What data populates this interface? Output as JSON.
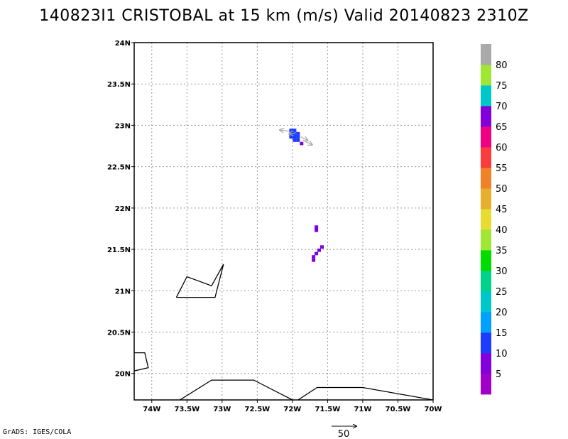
{
  "title": "140823I1 CRISTOBAL at 15 km (m/s) Valid 20140823 2310Z",
  "credit": "GrADS: IGES/COLA",
  "chart_data": {
    "type": "map",
    "xlim": [
      -74.25,
      -70.0
    ],
    "ylim": [
      19.68,
      24.0
    ],
    "grid": true,
    "x_ticks": [
      {
        "value": -74.0,
        "label": "74W"
      },
      {
        "value": -73.5,
        "label": "73.5W"
      },
      {
        "value": -73.0,
        "label": "73W"
      },
      {
        "value": -72.5,
        "label": "72.5W"
      },
      {
        "value": -72.0,
        "label": "72W"
      },
      {
        "value": -71.5,
        "label": "71.5W"
      },
      {
        "value": -71.0,
        "label": "71W"
      },
      {
        "value": -70.5,
        "label": "70.5W"
      },
      {
        "value": -70.0,
        "label": "70W"
      }
    ],
    "y_ticks": [
      {
        "value": 20.0,
        "label": "20N"
      },
      {
        "value": 20.5,
        "label": "20.5N"
      },
      {
        "value": 21.0,
        "label": "21N"
      },
      {
        "value": 21.5,
        "label": "21.5N"
      },
      {
        "value": 22.0,
        "label": "22N"
      },
      {
        "value": 22.5,
        "label": "22.5N"
      },
      {
        "value": 23.0,
        "label": "23N"
      },
      {
        "value": 23.5,
        "label": "23.5N"
      },
      {
        "value": 24.0,
        "label": "24N"
      }
    ],
    "colorbar": {
      "colors": [
        "#a000c8",
        "#8200dc",
        "#1e3cff",
        "#00a0ff",
        "#00c8c8",
        "#00d28c",
        "#00dc00",
        "#a0e632",
        "#e6dc32",
        "#e6af2d",
        "#f08228",
        "#fa3c3c",
        "#f00082",
        "#8200dc",
        "#00c8c8",
        "#a0e632",
        "#aaaaaa"
      ],
      "labels": [
        "5",
        "10",
        "15",
        "20",
        "25",
        "30",
        "35",
        "40",
        "45",
        "50",
        "55",
        "60",
        "65",
        "70",
        "75",
        "80"
      ]
    },
    "wind_cells": [
      {
        "lon": -72.02,
        "lat": 22.94,
        "speed": 10
      },
      {
        "lon": -71.97,
        "lat": 22.94,
        "speed": 10
      },
      {
        "lon": -72.02,
        "lat": 22.9,
        "speed": 10
      },
      {
        "lon": -71.97,
        "lat": 22.9,
        "speed": 10
      },
      {
        "lon": -71.92,
        "lat": 22.9,
        "speed": 10
      },
      {
        "lon": -72.02,
        "lat": 22.86,
        "speed": 10
      },
      {
        "lon": -71.97,
        "lat": 22.86,
        "speed": 10
      },
      {
        "lon": -71.92,
        "lat": 22.86,
        "speed": 10
      },
      {
        "lon": -71.97,
        "lat": 22.82,
        "speed": 10
      },
      {
        "lon": -71.92,
        "lat": 22.82,
        "speed": 10
      },
      {
        "lon": -71.87,
        "lat": 22.78,
        "speed": 5
      },
      {
        "lon": -71.66,
        "lat": 21.77,
        "speed": 5
      },
      {
        "lon": -71.66,
        "lat": 21.73,
        "speed": 5
      },
      {
        "lon": -71.58,
        "lat": 21.53,
        "speed": 5
      },
      {
        "lon": -71.62,
        "lat": 21.49,
        "speed": 5
      },
      {
        "lon": -71.66,
        "lat": 21.45,
        "speed": 5
      },
      {
        "lon": -71.7,
        "lat": 21.41,
        "speed": 5
      },
      {
        "lon": -71.7,
        "lat": 21.37,
        "speed": 5
      }
    ],
    "wind_vectors": [
      {
        "lon": -72.05,
        "lat": 22.93,
        "u": -8,
        "v": 1
      },
      {
        "lon": -71.95,
        "lat": 22.91,
        "u": -6,
        "v": -1
      },
      {
        "lon": -71.88,
        "lat": 22.86,
        "u": 6,
        "v": -3
      },
      {
        "lon": -71.85,
        "lat": 22.82,
        "u": 8,
        "v": -4
      }
    ],
    "coastlines": [
      [
        [
          -73.65,
          20.92
        ],
        [
          -73.5,
          21.17
        ],
        [
          -73.15,
          21.06
        ],
        [
          -72.98,
          21.32
        ],
        [
          -73.1,
          20.92
        ],
        [
          -73.65,
          20.92
        ]
      ],
      [
        [
          -74.25,
          20.25
        ],
        [
          -74.1,
          20.25
        ],
        [
          -74.05,
          20.07
        ],
        [
          -74.25,
          20.03
        ]
      ],
      [
        [
          -73.6,
          19.68
        ],
        [
          -73.15,
          19.92
        ],
        [
          -72.55,
          19.92
        ],
        [
          -72.0,
          19.68
        ]
      ],
      [
        [
          -71.92,
          19.68
        ],
        [
          -71.65,
          19.83
        ],
        [
          -71.0,
          19.83
        ],
        [
          -70.0,
          19.68
        ]
      ]
    ],
    "reference_vector": {
      "value": "50"
    }
  }
}
